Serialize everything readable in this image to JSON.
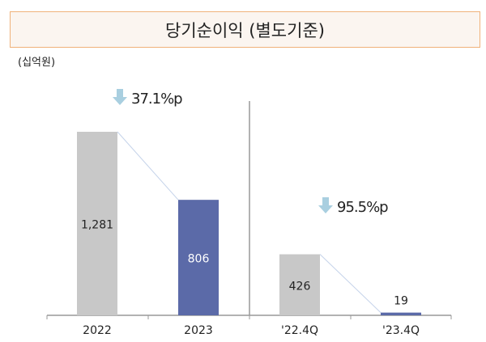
{
  "title": "당기순이익 (별도기준)",
  "unit": "(십억원)",
  "chart_data": [
    {
      "type": "bar",
      "categories": [
        "2022",
        "2023"
      ],
      "values": [
        1281,
        806
      ],
      "data_labels": [
        "1,281",
        "806"
      ],
      "colors": [
        "#c8c8c8",
        "#5b6aa8"
      ],
      "annotation": "37.1%p",
      "annotation_icon": "down-arrow-icon"
    },
    {
      "type": "bar",
      "categories": [
        "'22.4Q",
        "'23.4Q"
      ],
      "values": [
        426,
        19
      ],
      "data_labels": [
        "426",
        "19"
      ],
      "colors": [
        "#c8c8c8",
        "#5b6aa8"
      ],
      "annotation": "95.5%p",
      "annotation_icon": "down-arrow-icon"
    }
  ],
  "colors": {
    "arrow": "#a9cfe0",
    "connector": "#c5d3ea",
    "axis": "#999999"
  }
}
